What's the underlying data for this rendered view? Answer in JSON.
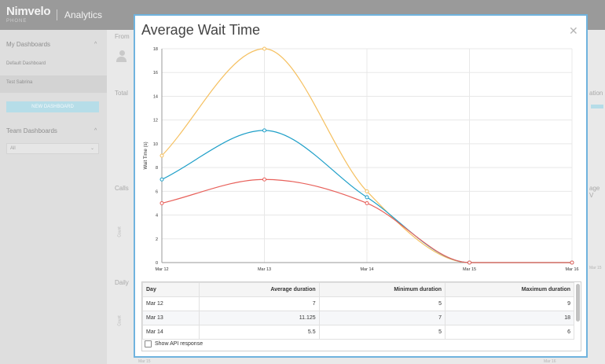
{
  "app": {
    "logo": "Nimvelo",
    "logo_sub": "PHONE",
    "name": "Analytics"
  },
  "sidebar": {
    "my_dashboards": "My Dashboards",
    "items": [
      {
        "label": "Default Dashboard",
        "active": false
      },
      {
        "label": "Test Sabrina",
        "active": true
      }
    ],
    "new_dashboard": "NEW DASHBOARD",
    "team_dashboards": "Team Dashboards",
    "team_select": "All"
  },
  "background": {
    "from_label": "From",
    "total_label": "Total",
    "calls_label": "Calls",
    "daily_label": "Daily",
    "count_label": "Count",
    "right_label_1": "ation",
    "right_label_2": "age V",
    "tick_mar15": "Mar 15",
    "tick_mar16": "Mar 16"
  },
  "modal": {
    "title": "Average Wait Time",
    "close_icon": "close-icon",
    "show_api_response": "Show API response"
  },
  "chart_data": {
    "type": "line",
    "title": "",
    "xlabel": "",
    "ylabel": "Wait Time (s)",
    "x": [
      "Mar 12",
      "Mar 13",
      "Mar 14",
      "Mar 15",
      "Mar 16"
    ],
    "ylim": [
      0,
      18
    ],
    "yticks": [
      0,
      2,
      4,
      6,
      8,
      10,
      12,
      14,
      16,
      18
    ],
    "grid": true,
    "smooth": true,
    "series": [
      {
        "color": "#f5c060",
        "values": [
          9,
          18,
          6,
          0,
          0
        ]
      },
      {
        "color": "#1e9fc8",
        "values": [
          7,
          11.125,
          5.5,
          0,
          0
        ]
      },
      {
        "color": "#e8615b",
        "values": [
          5,
          7,
          5,
          0,
          0
        ]
      }
    ]
  },
  "table": {
    "columns": [
      "Day",
      "Average duration",
      "Minimum duration",
      "Maximum duration"
    ],
    "rows": [
      [
        "Mar 12",
        "7",
        "5",
        "9"
      ],
      [
        "Mar 13",
        "11.125",
        "7",
        "18"
      ],
      [
        "Mar 14",
        "5.5",
        "5",
        "6"
      ]
    ]
  }
}
